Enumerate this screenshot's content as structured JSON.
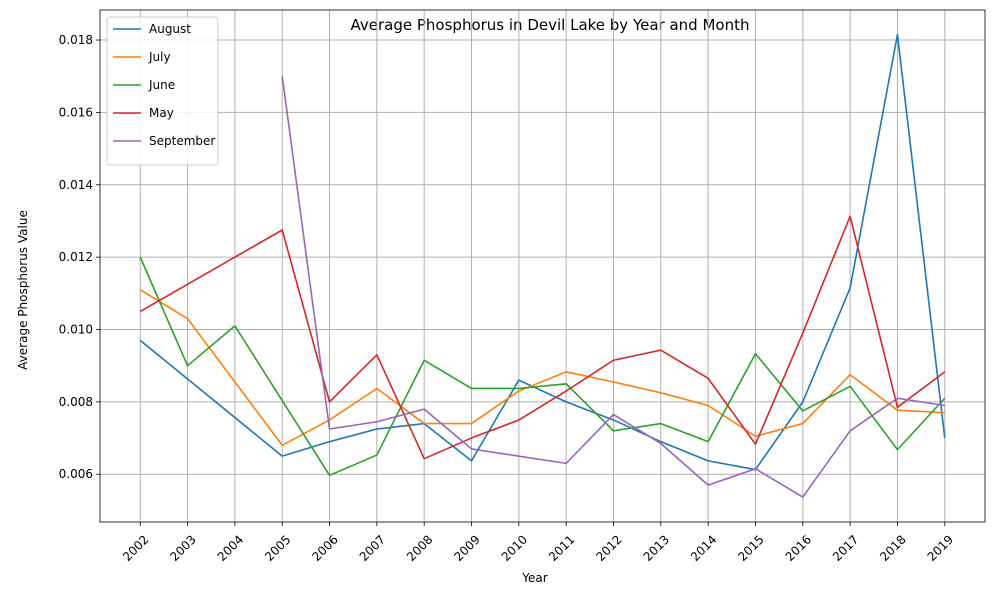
{
  "chart_data": {
    "type": "line",
    "title": "Average Phosphorus in Devil Lake by Year and Month",
    "xlabel": "Year",
    "ylabel": "Average Phosphorus Value",
    "x": [
      2002,
      2003,
      2004,
      2005,
      2006,
      2007,
      2008,
      2009,
      2010,
      2011,
      2012,
      2013,
      2014,
      2015,
      2016,
      2017,
      2018,
      2019
    ],
    "xtick_labels": [
      "2002",
      "2003",
      "2004",
      "2005",
      "2006",
      "2007",
      "2008",
      "2009",
      "2010",
      "2011",
      "2012",
      "2013",
      "2014",
      "2015",
      "2016",
      "2017",
      "2018",
      "2019"
    ],
    "yticks": [
      0.006,
      0.008,
      0.01,
      0.012,
      0.014,
      0.016,
      0.018
    ],
    "ytick_labels": [
      "0.006",
      "0.008",
      "0.010",
      "0.012",
      "0.014",
      "0.016",
      "0.018"
    ],
    "ylim": [
      0.00468,
      0.01883
    ],
    "xlim": [
      2001.15,
      2019.85
    ],
    "grid": true,
    "legend_position": "top-left",
    "series": [
      {
        "name": "August",
        "color": "#1f77b4",
        "points": [
          [
            2002,
            0.0097
          ],
          [
            2005,
            0.0065
          ],
          [
            2006,
            0.0069
          ],
          [
            2007,
            0.00725
          ],
          [
            2008,
            0.0074
          ],
          [
            2009,
            0.00637
          ],
          [
            2010,
            0.0086
          ],
          [
            2011,
            0.008
          ],
          [
            2012,
            0.0075
          ],
          [
            2013,
            0.0069
          ],
          [
            2014,
            0.00637
          ],
          [
            2015,
            0.00613
          ],
          [
            2016,
            0.008
          ],
          [
            2017,
            0.01115
          ],
          [
            2018,
            0.01815
          ],
          [
            2019,
            0.007
          ]
        ]
      },
      {
        "name": "July",
        "color": "#ff7f0e",
        "points": [
          [
            2002,
            0.0111
          ],
          [
            2003,
            0.0103
          ],
          [
            2005,
            0.0068
          ],
          [
            2006,
            0.0075
          ],
          [
            2007,
            0.00837
          ],
          [
            2008,
            0.0074
          ],
          [
            2009,
            0.0074
          ],
          [
            2010,
            0.0083
          ],
          [
            2011,
            0.00883
          ],
          [
            2012,
            0.00855
          ],
          [
            2013,
            0.00825
          ],
          [
            2014,
            0.0079
          ],
          [
            2015,
            0.00705
          ],
          [
            2016,
            0.0074
          ],
          [
            2017,
            0.00875
          ],
          [
            2018,
            0.00777
          ],
          [
            2019,
            0.0077
          ]
        ]
      },
      {
        "name": "June",
        "color": "#2ca02c",
        "points": [
          [
            2002,
            0.012
          ],
          [
            2003,
            0.009
          ],
          [
            2004,
            0.0101
          ],
          [
            2006,
            0.00597
          ],
          [
            2007,
            0.00653
          ],
          [
            2008,
            0.00915
          ],
          [
            2009,
            0.00837
          ],
          [
            2010,
            0.00837
          ],
          [
            2011,
            0.0085
          ],
          [
            2012,
            0.0072
          ],
          [
            2013,
            0.0074
          ],
          [
            2014,
            0.0069
          ],
          [
            2015,
            0.00933
          ],
          [
            2016,
            0.00775
          ],
          [
            2017,
            0.00843
          ],
          [
            2018,
            0.00668
          ],
          [
            2019,
            0.0081
          ]
        ]
      },
      {
        "name": "May",
        "color": "#d62728",
        "points": [
          [
            2002,
            0.0105
          ],
          [
            2005,
            0.01275
          ],
          [
            2006,
            0.008
          ],
          [
            2007,
            0.0093
          ],
          [
            2008,
            0.00643
          ],
          [
            2009,
            0.007
          ],
          [
            2010,
            0.0075
          ],
          [
            2011,
            0.0083
          ],
          [
            2012,
            0.00915
          ],
          [
            2013,
            0.00943
          ],
          [
            2014,
            0.00865
          ],
          [
            2015,
            0.00683
          ],
          [
            2016,
            0.0099
          ],
          [
            2017,
            0.01313
          ],
          [
            2018,
            0.00785
          ],
          [
            2019,
            0.00883
          ]
        ]
      },
      {
        "name": "September",
        "color": "#9467bd",
        "points": [
          [
            2005,
            0.017
          ],
          [
            2006,
            0.00725
          ],
          [
            2007,
            0.00745
          ],
          [
            2008,
            0.0078
          ],
          [
            2009,
            0.0067
          ],
          [
            2010,
            0.0065
          ],
          [
            2011,
            0.0063
          ],
          [
            2012,
            0.00765
          ],
          [
            2013,
            0.00685
          ],
          [
            2014,
            0.0057
          ],
          [
            2015,
            0.00615
          ],
          [
            2016,
            0.00537
          ],
          [
            2017,
            0.0072
          ],
          [
            2018,
            0.0081
          ],
          [
            2019,
            0.0079
          ]
        ]
      }
    ]
  }
}
